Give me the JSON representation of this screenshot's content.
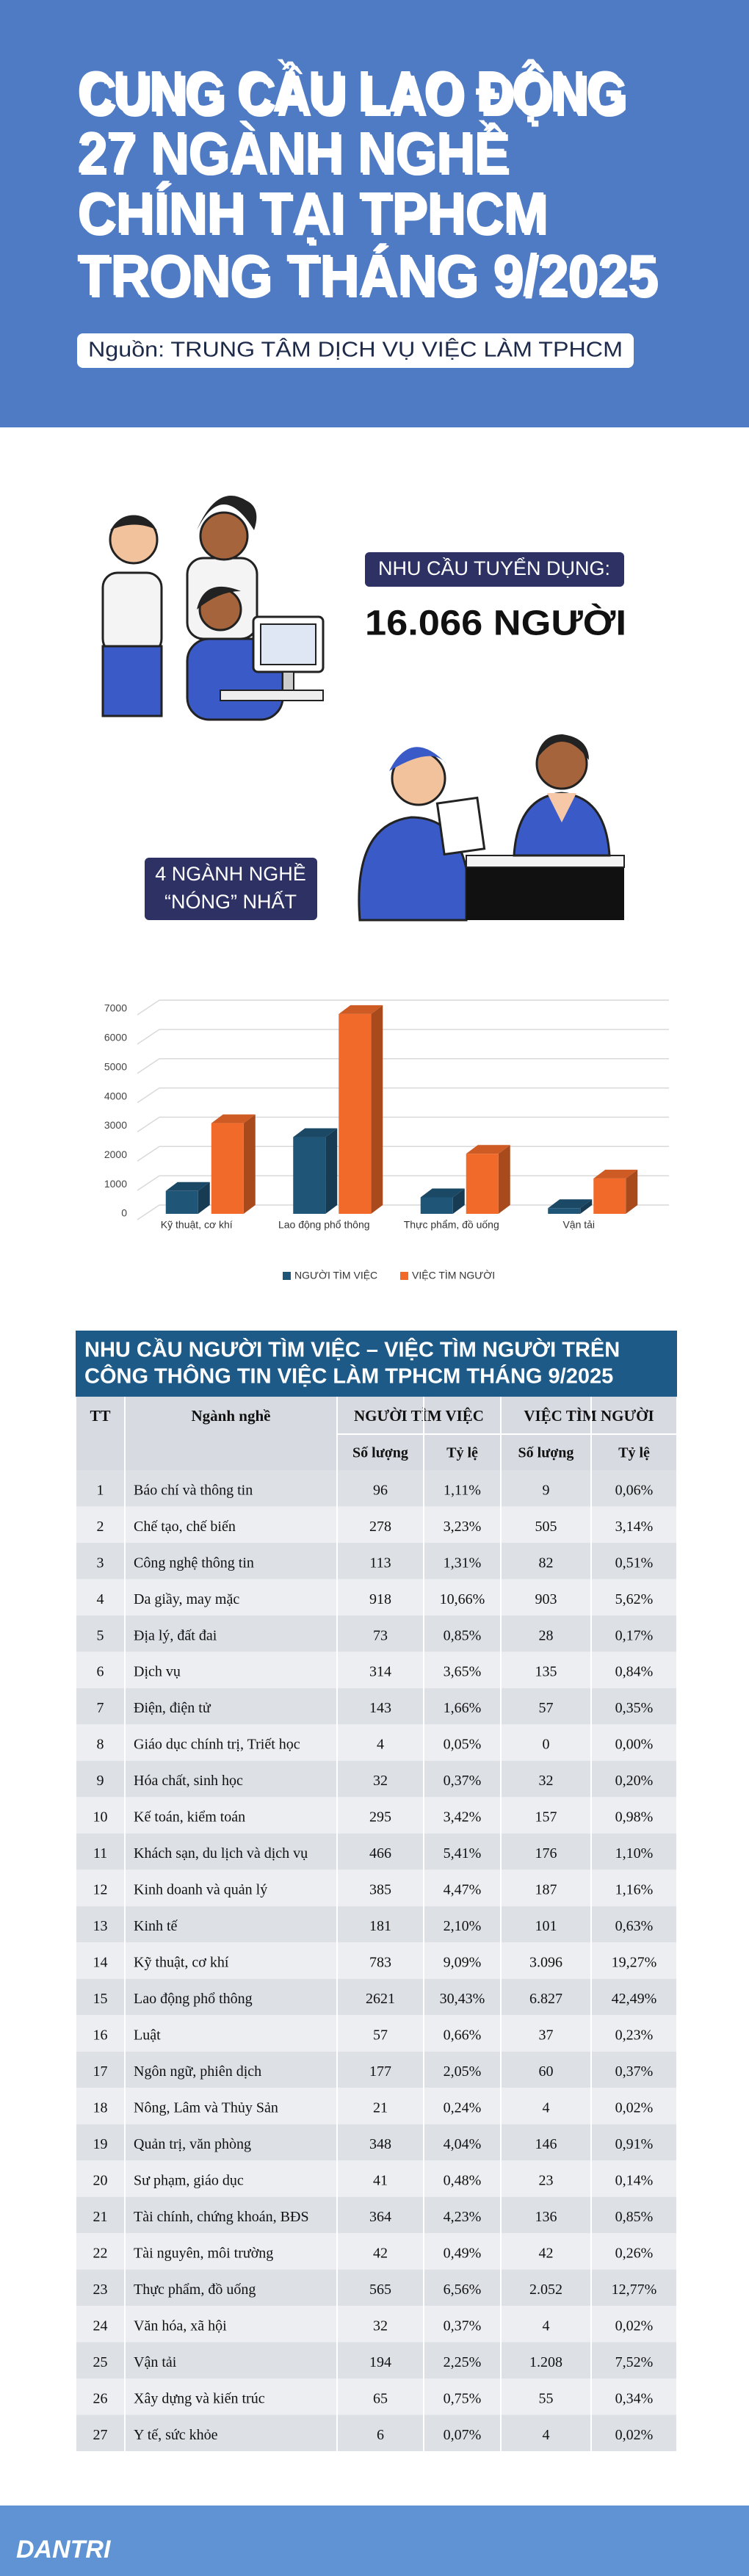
{
  "header": {
    "title": [
      "CUNG CẦU LAO ĐỘNG",
      "27 NGÀNH NGHỀ",
      "CHÍNH TẠI TPHCM",
      "TRONG THÁNG 9/2025"
    ],
    "source": "Nguồn: TRUNG TÂM DỊCH VỤ VIỆC LÀM TPHCM"
  },
  "demand": {
    "label": "NHU CẦU TUYỂN DỤNG:",
    "value": "16.066 NGƯỜI"
  },
  "hot": {
    "label": [
      "4 NGÀNH NGHỀ",
      "“NÓNG” NHẤT"
    ]
  },
  "chart_data": {
    "type": "bar3d",
    "categories": [
      "Kỹ thuật, cơ khí",
      "Lao động phổ thông",
      "Thực phẩm, đồ uống",
      "Vận tải"
    ],
    "series": [
      {
        "name": "NGƯỜI TÌM VIỆC",
        "color": "#1f5577",
        "values": [
          783,
          2621,
          565,
          194
        ]
      },
      {
        "name": "VIỆC TÌM NGƯỜI",
        "color": "#f26a2a",
        "values": [
          3096,
          6827,
          2052,
          1208
        ]
      }
    ],
    "ylim": [
      0,
      7000
    ],
    "yticks": [
      0,
      1000,
      2000,
      3000,
      4000,
      5000,
      6000,
      7000
    ],
    "grid": true,
    "legend": "bottom"
  },
  "table": {
    "title": [
      "NHU CẦU NGƯỜI TÌM VIỆC – VIỆC TÌM NGƯỜI TRÊN",
      "CÔNG THÔNG TIN VIỆC LÀM TPHCM THÁNG 9/2025"
    ],
    "header": [
      "TT",
      "Ngành nghề",
      "NGƯỜI TÌM VIỆC",
      "VIỆC TÌM NGƯỜI"
    ],
    "subheader": [
      "Số lượng",
      "Tỷ lệ",
      "Số lượng",
      "Tỷ lệ"
    ],
    "rows": [
      [
        "1",
        "Báo chí và thông tin",
        "96",
        "1,11%",
        "9",
        "0,06%"
      ],
      [
        "2",
        "Chế tạo, chế biến",
        "278",
        "3,23%",
        "505",
        "3,14%"
      ],
      [
        "3",
        "Công nghệ thông tin",
        "113",
        "1,31%",
        "82",
        "0,51%"
      ],
      [
        "4",
        "Da giầy, may mặc",
        "918",
        "10,66%",
        "903",
        "5,62%"
      ],
      [
        "5",
        "Địa lý, đất đai",
        "73",
        "0,85%",
        "28",
        "0,17%"
      ],
      [
        "6",
        "Dịch vụ",
        "314",
        "3,65%",
        "135",
        "0,84%"
      ],
      [
        "7",
        "Điện, điện tử",
        "143",
        "1,66%",
        "57",
        "0,35%"
      ],
      [
        "8",
        "Giáo dục chính trị, Triết học",
        "4",
        "0,05%",
        "0",
        "0,00%"
      ],
      [
        "9",
        "Hóa chất, sinh học",
        "32",
        "0,37%",
        "32",
        "0,20%"
      ],
      [
        "10",
        "Kế toán, kiểm toán",
        "295",
        "3,42%",
        "157",
        "0,98%"
      ],
      [
        "11",
        "Khách sạn, du lịch và dịch vụ",
        "466",
        "5,41%",
        "176",
        "1,10%"
      ],
      [
        "12",
        "Kinh doanh và quản lý",
        "385",
        "4,47%",
        "187",
        "1,16%"
      ],
      [
        "13",
        "Kinh tế",
        "181",
        "2,10%",
        "101",
        "0,63%"
      ],
      [
        "14",
        "Kỹ thuật, cơ khí",
        "783",
        "9,09%",
        "3.096",
        "19,27%"
      ],
      [
        "15",
        "Lao động phổ thông",
        "2621",
        "30,43%",
        "6.827",
        "42,49%"
      ],
      [
        "16",
        "Luật",
        "57",
        "0,66%",
        "37",
        "0,23%"
      ],
      [
        "17",
        "Ngôn ngữ, phiên dịch",
        "177",
        "2,05%",
        "60",
        "0,37%"
      ],
      [
        "18",
        "Nông, Lâm và Thủy Sản",
        "21",
        "0,24%",
        "4",
        "0,02%"
      ],
      [
        "19",
        "Quản trị, văn phòng",
        "348",
        "4,04%",
        "146",
        "0,91%"
      ],
      [
        "20",
        "Sư phạm, giáo dục",
        "41",
        "0,48%",
        "23",
        "0,14%"
      ],
      [
        "21",
        "Tài chính, chứng khoán, BĐS",
        "364",
        "4,23%",
        "136",
        "0,85%"
      ],
      [
        "22",
        "Tài nguyên, môi trường",
        "42",
        "0,49%",
        "42",
        "0,26%"
      ],
      [
        "23",
        "Thực phẩm, đồ uống",
        "565",
        "6,56%",
        "2.052",
        "12,77%"
      ],
      [
        "24",
        "Văn hóa, xã hội",
        "32",
        "0,37%",
        "4",
        "0,02%"
      ],
      [
        "25",
        "Vận tải",
        "194",
        "2,25%",
        "1.208",
        "7,52%"
      ],
      [
        "26",
        "Xây dựng và kiến trúc",
        "65",
        "0,75%",
        "55",
        "0,34%"
      ],
      [
        "27",
        "Y tế, sức khỏe",
        "6",
        "0,07%",
        "4",
        "0,02%"
      ]
    ]
  },
  "footer": {
    "logo": "DANTRI"
  }
}
